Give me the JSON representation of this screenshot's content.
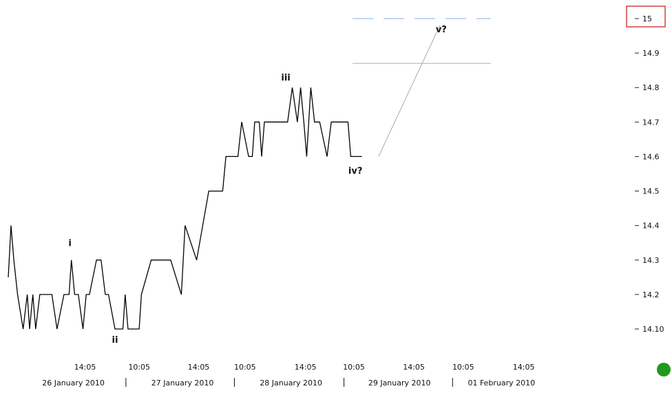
{
  "chart_data": {
    "type": "line",
    "ylim": [
      14.03,
      15.03
    ],
    "y_ticks": [
      {
        "value": 15.0,
        "label": "15"
      },
      {
        "value": 14.9,
        "label": "14.9"
      },
      {
        "value": 14.8,
        "label": "14.8"
      },
      {
        "value": 14.7,
        "label": "14.7"
      },
      {
        "value": 14.6,
        "label": "14.6"
      },
      {
        "value": 14.5,
        "label": "14.5"
      },
      {
        "value": 14.4,
        "label": "14.4"
      },
      {
        "value": 14.3,
        "label": "14.3"
      },
      {
        "value": 14.2,
        "label": "14.2"
      },
      {
        "value": 14.1,
        "label": "14.10"
      }
    ],
    "highlighted_tick": "15",
    "x_range": [
      0,
      100
    ],
    "x_time_ticks": [
      {
        "x": 16.55,
        "label": "14:05"
      },
      {
        "x": 28.22,
        "label": "10:05"
      },
      {
        "x": 41.02,
        "label": "14:05"
      },
      {
        "x": 51.01,
        "label": "10:05"
      },
      {
        "x": 64.04,
        "label": "14:05"
      },
      {
        "x": 74.48,
        "label": "10:05"
      },
      {
        "x": 87.4,
        "label": "14:05"
      },
      {
        "x": 98.04,
        "label": "10:05"
      },
      {
        "x": 111.07,
        "label": "14:05"
      }
    ],
    "x_date_labels": [
      {
        "x": 14.03,
        "label": "26 January 2010"
      },
      {
        "x": 37.55,
        "label": "27 January 2010"
      },
      {
        "x": 60.93,
        "label": "28 January 2010"
      },
      {
        "x": 84.3,
        "label": "29 January 2010"
      },
      {
        "x": 106.28,
        "label": "01 February 2010"
      }
    ],
    "x_date_separators": [
      25.35,
      48.73,
      72.34,
      95.74
    ],
    "series": [
      {
        "color": "#000000",
        "points": [
          [
            0.0,
            14.25
          ],
          [
            0.6,
            14.4
          ],
          [
            1.2,
            14.3
          ],
          [
            2.0,
            14.2
          ],
          [
            3.2,
            14.1
          ],
          [
            4.1,
            14.2
          ],
          [
            4.6,
            14.1
          ],
          [
            5.3,
            14.2
          ],
          [
            5.9,
            14.1
          ],
          [
            6.8,
            14.2
          ],
          [
            9.4,
            14.2
          ],
          [
            10.5,
            14.1
          ],
          [
            12.0,
            14.2
          ],
          [
            13.1,
            14.2
          ],
          [
            13.6,
            14.3
          ],
          [
            14.3,
            14.2
          ],
          [
            15.1,
            14.2
          ],
          [
            16.1,
            14.1
          ],
          [
            16.8,
            14.2
          ],
          [
            17.5,
            14.2
          ],
          [
            19.0,
            14.3
          ],
          [
            20.0,
            14.3
          ],
          [
            20.9,
            14.2
          ],
          [
            21.6,
            14.2
          ],
          [
            23.0,
            14.1
          ],
          [
            24.7,
            14.1
          ],
          [
            25.2,
            14.2
          ],
          [
            25.8,
            14.1
          ],
          [
            28.2,
            14.1
          ],
          [
            28.7,
            14.2
          ],
          [
            30.8,
            14.3
          ],
          [
            35.0,
            14.3
          ],
          [
            37.3,
            14.2
          ],
          [
            38.1,
            14.4
          ],
          [
            40.6,
            14.3
          ],
          [
            43.2,
            14.5
          ],
          [
            46.2,
            14.5
          ],
          [
            46.9,
            14.6
          ],
          [
            49.5,
            14.6
          ],
          [
            50.3,
            14.7
          ],
          [
            51.8,
            14.6
          ],
          [
            52.6,
            14.6
          ],
          [
            53.1,
            14.7
          ],
          [
            54.1,
            14.7
          ],
          [
            54.6,
            14.6
          ],
          [
            55.2,
            14.7
          ],
          [
            60.2,
            14.7
          ],
          [
            61.2,
            14.8
          ],
          [
            62.3,
            14.7
          ],
          [
            63.0,
            14.8
          ],
          [
            63.7,
            14.7
          ],
          [
            64.3,
            14.6
          ],
          [
            65.2,
            14.8
          ],
          [
            66.0,
            14.7
          ],
          [
            67.1,
            14.7
          ],
          [
            68.7,
            14.6
          ],
          [
            69.6,
            14.7
          ],
          [
            73.2,
            14.7
          ],
          [
            73.8,
            14.6
          ],
          [
            76.2,
            14.6
          ]
        ]
      }
    ],
    "projection_line": {
      "color": "#aaaaaa",
      "from": [
        79.8,
        14.6
      ],
      "to": [
        93.0,
        14.98
      ]
    },
    "horizontal_lines": [
      {
        "y": 15.0,
        "color": "#7fb2e5",
        "style": "dashed",
        "x_from": 74.2,
        "x_to": 104.0
      },
      {
        "y": 14.87,
        "color": "#7fb2e5",
        "style": "solid",
        "x_from": 74.2,
        "x_to": 104.0
      }
    ],
    "annotations": [
      {
        "label": "i",
        "x": 13.3,
        "y": 14.34
      },
      {
        "label": "ii",
        "x": 23.0,
        "y": 14.06
      },
      {
        "label": "iii",
        "x": 59.8,
        "y": 14.82
      },
      {
        "label": "iv?",
        "x": 74.8,
        "y": 14.55
      },
      {
        "label": "v?",
        "x": 93.3,
        "y": 14.96
      }
    ],
    "status_dot_color": "#1f9a1f",
    "highlight_box_color": "#cc2222"
  }
}
